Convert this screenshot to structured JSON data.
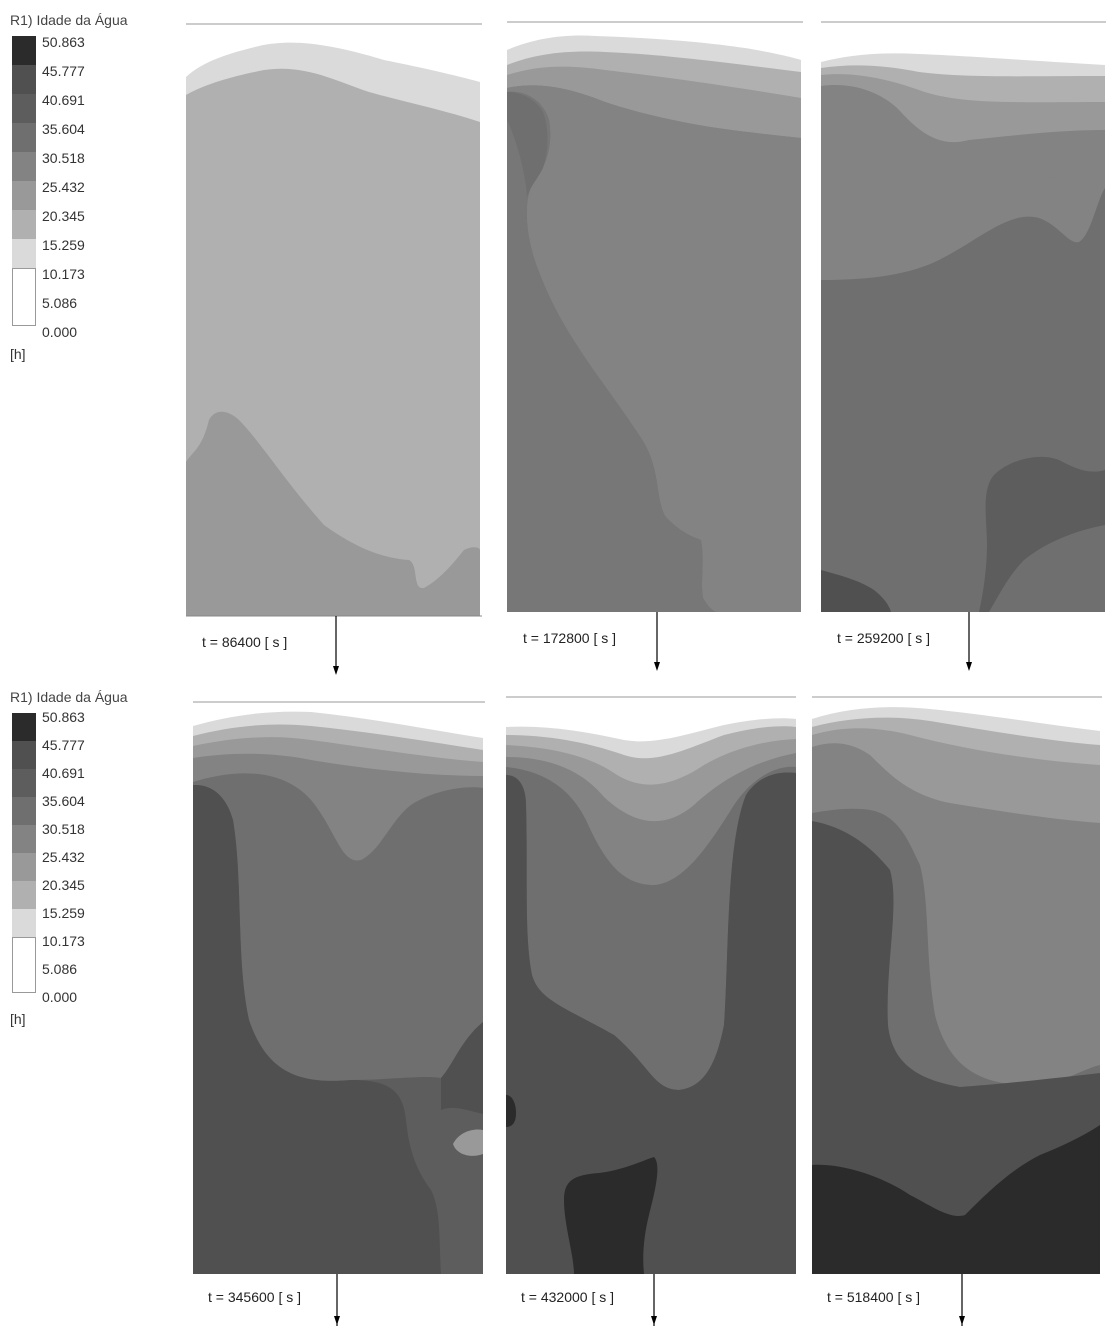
{
  "legend": {
    "title": "R1) Idade da Água",
    "unit": "[h]",
    "levels": [
      "50.863",
      "45.777",
      "40.691",
      "35.604",
      "30.518",
      "25.432",
      "20.345",
      "15.259",
      "10.173",
      "5.086",
      "0.000"
    ],
    "colors": [
      "#2b2b2b",
      "#505050",
      "#5d5d5d",
      "#6f6f6f",
      "#838383",
      "#999999",
      "#b0b0b0",
      "#dadada",
      "#ffffff",
      "#ffffff"
    ]
  },
  "panels": [
    {
      "time_label": "t = 86400 [ s ]"
    },
    {
      "time_label": "t = 172800 [ s ]"
    },
    {
      "time_label": "t = 259200 [ s ]"
    },
    {
      "time_label": "t = 345600 [ s ]"
    },
    {
      "time_label": "t = 432000 [ s ]"
    },
    {
      "time_label": "t = 518400 [ s ]"
    }
  ]
}
